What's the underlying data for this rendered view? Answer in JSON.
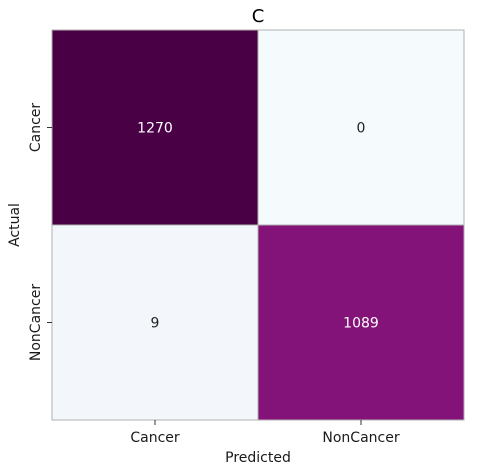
{
  "chart_data": {
    "type": "heatmap",
    "title": "C",
    "xlabel": "Predicted",
    "ylabel": "Actual",
    "x_categories": [
      "Cancer",
      "NonCancer"
    ],
    "y_categories": [
      "Cancer",
      "NonCancer"
    ],
    "values": [
      [
        1270,
        0
      ],
      [
        9,
        1089
      ]
    ],
    "colorbar": false,
    "colors": {
      "high": "#4a0045",
      "mid": "#86147c",
      "low": "#f5fafd",
      "text_dark": "#222222",
      "text_light": "#ffffff",
      "grid_line": "#b0b0b0"
    }
  }
}
